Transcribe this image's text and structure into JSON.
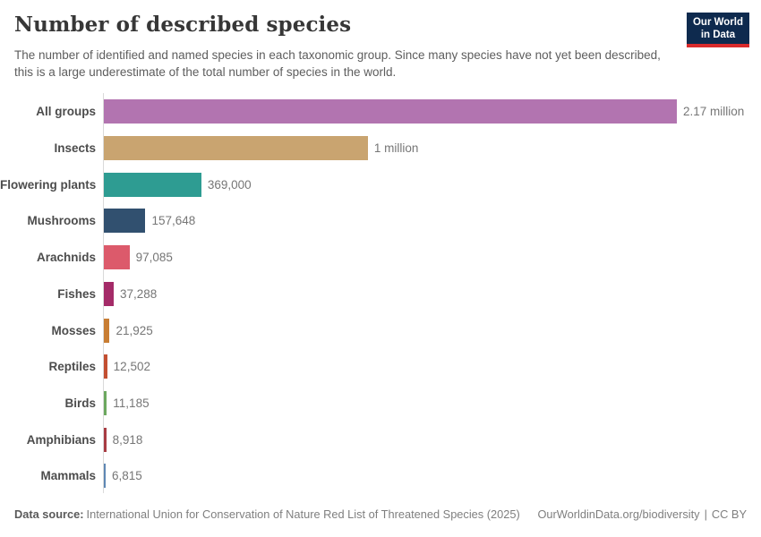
{
  "header": {
    "title": "Number of described species",
    "subtitle": "The number of identified and named species in each taxonomic group. Since many species have not yet been described, this is a large underestimate of the total number of species in the world.",
    "logo": {
      "line1": "Our World",
      "line2": "in Data",
      "bg_color": "#0E2A4E",
      "accent_color": "#D92A2B"
    }
  },
  "chart_data": {
    "type": "bar",
    "orientation": "horizontal",
    "title": "Number of described species",
    "categories": [
      "All groups",
      "Insects",
      "Flowering plants",
      "Mushrooms",
      "Arachnids",
      "Fishes",
      "Mosses",
      "Reptiles",
      "Birds",
      "Amphibians",
      "Mammals"
    ],
    "values": [
      2170000,
      1000000,
      369000,
      157648,
      97085,
      37288,
      21925,
      12502,
      11185,
      8918,
      6815
    ],
    "value_labels": [
      "2.17 million",
      "1 million",
      "369,000",
      "157,648",
      "97,085",
      "37,288",
      "21,925",
      "12,502",
      "11,185",
      "8,918",
      "6,815"
    ],
    "colors": [
      "#B274B0",
      "#C9A470",
      "#2E9C92",
      "#31506F",
      "#DC5A6B",
      "#A42B68",
      "#C87D33",
      "#C34F31",
      "#6CA85F",
      "#A83C43",
      "#5E87B4"
    ],
    "xlabel": "",
    "ylabel": "",
    "xlim": [
      0,
      2170000
    ],
    "grid": false,
    "legend": "none"
  },
  "footer": {
    "source_label": "Data source:",
    "source_text": "International Union for Conservation of Nature Red List of Threatened Species (2025)",
    "link_text": "OurWorldinData.org/biodiversity",
    "separator": "|",
    "license_text": "CC BY"
  }
}
